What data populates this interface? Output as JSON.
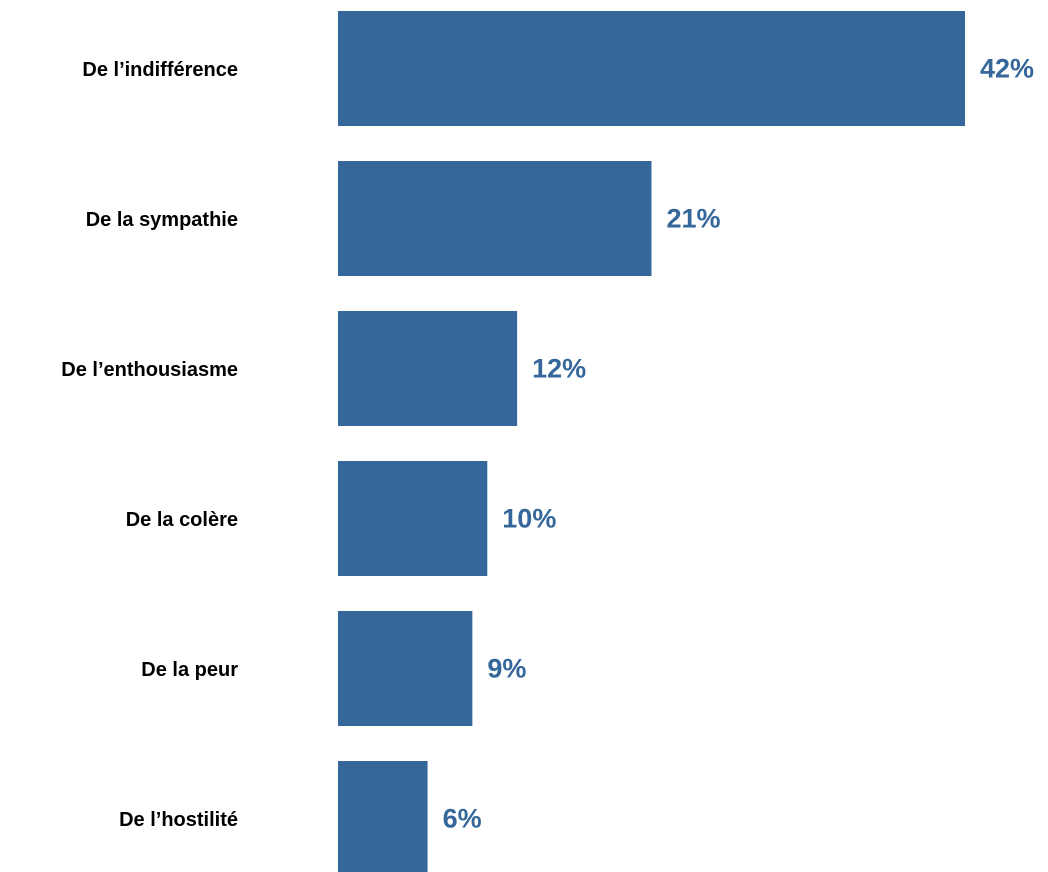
{
  "chart_data": {
    "type": "barh",
    "categories": [
      "De l’indifférence",
      "De la sympathie",
      "De l’enthousiasme",
      "De la colère",
      "De la peur",
      "De l’hostilité"
    ],
    "values": [
      42,
      21,
      12,
      10,
      9,
      6
    ],
    "value_labels": [
      "42%",
      "21%",
      "12%",
      "10%",
      "9%",
      "6%"
    ],
    "color": "#35679a",
    "xlim": [
      0,
      42
    ]
  }
}
